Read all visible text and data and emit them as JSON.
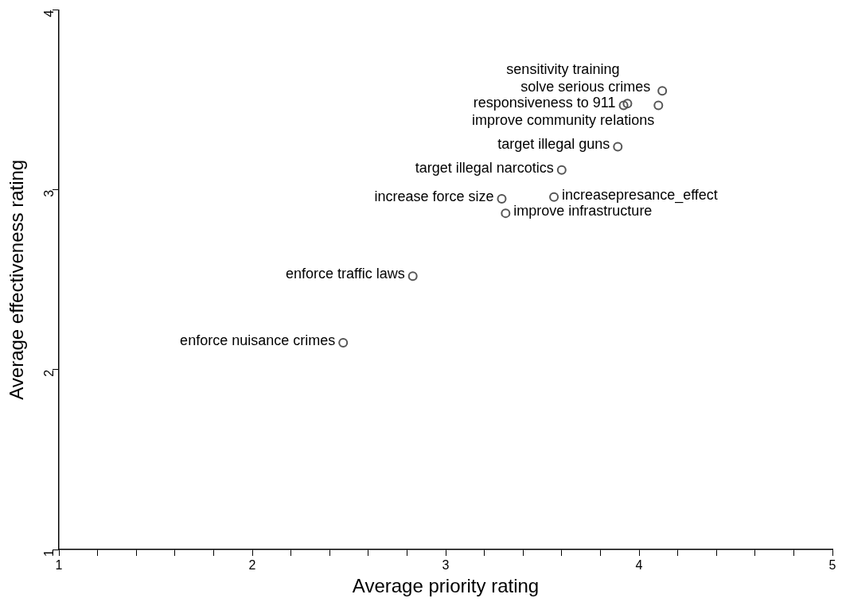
{
  "chart_data": {
    "type": "scatter",
    "xlabel": "Average priority rating",
    "ylabel": "Average effectiveness rating",
    "series": [
      {
        "color": "#555555",
        "x": [
          2.47,
          2.83,
          3.29,
          3.31,
          3.56,
          3.6,
          3.89,
          3.92,
          3.94,
          4.1,
          4.12
        ],
        "values": [
          2.15,
          2.52,
          2.95,
          2.87,
          2.96,
          3.11,
          3.24,
          3.47,
          3.48,
          3.47,
          3.55
        ]
      }
    ],
    "annotations": [
      {
        "text": "enforce nuisance crimes",
        "x": 2.47,
        "y": 2.15
      },
      {
        "text": "enforce traffic laws",
        "x": 2.83,
        "y": 2.52
      },
      {
        "text": "increase force size",
        "x": 3.29,
        "y": 2.95
      },
      {
        "text": "improve infrastructure",
        "x": 3.31,
        "y": 2.87
      },
      {
        "text": "target illegal narcotics",
        "x": 3.6,
        "y": 3.11
      },
      {
        "text": "increasepresance_effect",
        "x": 3.56,
        "y": 2.96
      },
      {
        "text": "target illegal guns",
        "x": 3.89,
        "y": 3.24
      },
      {
        "text": "responsiveness to 911",
        "x": 3.92,
        "y": 3.47
      },
      {
        "text": "sensitivity training",
        "x": 3.94,
        "y": 3.48
      },
      {
        "text": "solve serious crimes",
        "x": 4.1,
        "y": 3.47
      },
      {
        "text": "improve community relations",
        "x": 4.12,
        "y": 3.55
      }
    ],
    "xlim": [
      1,
      5
    ],
    "ylim": [
      1,
      4
    ],
    "xticks": [
      1,
      {
        "value": 1.2,
        "label": null
      },
      {
        "value": 1.4,
        "label": null
      },
      {
        "value": 1.6,
        "label": null
      },
      {
        "value": 1.8,
        "label": null
      },
      2,
      {
        "value": 2.2,
        "label": null
      },
      {
        "value": 2.4,
        "label": null
      },
      {
        "value": 2.6,
        "label": null
      },
      {
        "value": 2.8,
        "label": null
      },
      3,
      {
        "value": 3.2,
        "label": null
      },
      {
        "value": 3.4,
        "label": null
      },
      {
        "value": 3.6,
        "label": null
      },
      {
        "value": 3.8,
        "label": null
      },
      4,
      {
        "value": 4.2,
        "label": null
      },
      {
        "value": 4.4,
        "label": null
      },
      {
        "value": 4.6,
        "label": null
      },
      {
        "value": 4.8,
        "label": null
      },
      5
    ],
    "yticks": [
      1,
      2,
      3,
      4
    ],
    "grid": false,
    "legend": false,
    "marker": "circle"
  }
}
